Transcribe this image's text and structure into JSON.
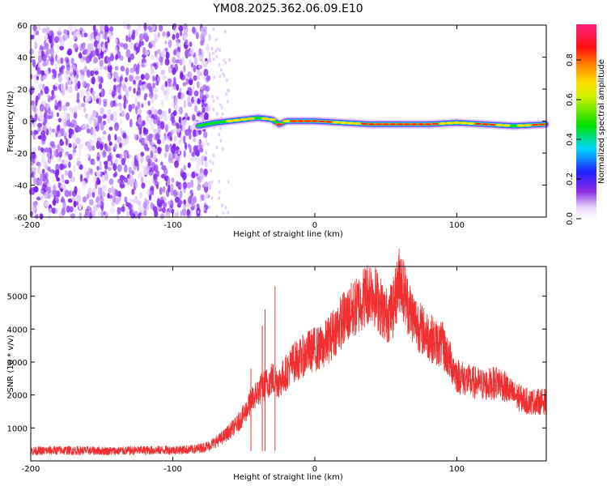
{
  "title": "YM08.2025.362.06.09.E10",
  "colors": {
    "snr_line": "#f03030",
    "spectrum_low": "#7b2ff7",
    "spectrum_mid": "#00e000",
    "spectrum_high": "#ff0000",
    "axis": "#000000"
  },
  "chart_data": [
    {
      "type": "heatmap",
      "name": "spectrogram",
      "xlabel": "Height of straight line (km)",
      "ylabel": "Frequency (Hz)",
      "xlim": [
        -200,
        163
      ],
      "ylim": [
        -60,
        60
      ],
      "xticks": [
        -200,
        -100,
        0,
        100
      ],
      "xtick_labels": [
        "-200",
        "-100",
        "0",
        "100"
      ],
      "yticks": [
        60,
        40,
        20,
        0,
        -20,
        -40,
        -60
      ],
      "ytick_labels": [
        "60",
        "40",
        "20",
        "0",
        "-20",
        "-40",
        "-60"
      ],
      "noise_region_x": [
        -200,
        -80
      ],
      "ridge": {
        "description_points_x": [
          -82,
          -70,
          -60,
          -50,
          -40,
          -30,
          -25,
          -20,
          -10,
          0,
          20,
          40,
          60,
          80,
          100,
          120,
          140,
          163
        ],
        "center_hz": [
          -3,
          -1,
          0,
          1,
          2,
          1,
          -2,
          0,
          0,
          0,
          -1,
          -2,
          -2,
          -2,
          -1,
          -2,
          -3,
          -2
        ],
        "amplitude": [
          0.3,
          0.45,
          0.55,
          0.6,
          0.5,
          0.6,
          0.7,
          0.65,
          0.8,
          0.85,
          0.6,
          0.75,
          0.7,
          0.8,
          0.55,
          0.75,
          0.5,
          0.9
        ]
      },
      "colorbar": {
        "label": "Normalized spectral amplitude",
        "range": [
          0,
          0.98
        ],
        "ticks": [
          0.0,
          0.2,
          0.4,
          0.6,
          0.8
        ],
        "tick_labels": [
          "0.0",
          "0.2",
          "0.4",
          "0.6",
          "0.8"
        ],
        "colormap": "rainbow (white-violet-blue-cyan-green-yellow-red-magenta)"
      }
    },
    {
      "type": "line",
      "name": "snr",
      "xlabel": "Height of straight line (km)",
      "ylabel": "SNR (10 * v/v)",
      "xlim": [
        -200,
        163
      ],
      "ylim": [
        0,
        5900
      ],
      "xticks": [
        -200,
        -100,
        0,
        100
      ],
      "xtick_labels": [
        "-200",
        "-100",
        "0",
        "100"
      ],
      "yticks": [
        1000,
        2000,
        3000,
        4000,
        5000
      ],
      "ytick_labels": [
        "1000",
        "2000",
        "3000",
        "4000",
        "5000"
      ],
      "series": [
        {
          "name": "SNR",
          "x": [
            -200,
            -180,
            -160,
            -140,
            -120,
            -100,
            -85,
            -75,
            -65,
            -55,
            -50,
            -45,
            -40,
            -35,
            -30,
            -25,
            -20,
            -15,
            -10,
            -5,
            0,
            5,
            10,
            20,
            30,
            35,
            40,
            45,
            50,
            55,
            60,
            65,
            70,
            75,
            80,
            85,
            90,
            100,
            110,
            120,
            130,
            140,
            150,
            163
          ],
          "y": [
            300,
            320,
            310,
            300,
            320,
            330,
            350,
            450,
            700,
            1100,
            1400,
            1800,
            2100,
            2300,
            2500,
            2400,
            2700,
            3000,
            3100,
            3300,
            3400,
            3400,
            3700,
            4300,
            4700,
            5000,
            5200,
            4800,
            4400,
            4600,
            5600,
            4800,
            4300,
            4000,
            3800,
            3600,
            3500,
            2600,
            2400,
            2300,
            2400,
            2000,
            1800,
            1800
          ]
        }
      ],
      "spikes": [
        {
          "x": -37,
          "y": 4100
        },
        {
          "x": -35,
          "y": 4600
        },
        {
          "x": -28,
          "y": 5300
        },
        {
          "x": -45,
          "y": 2800
        }
      ]
    }
  ]
}
